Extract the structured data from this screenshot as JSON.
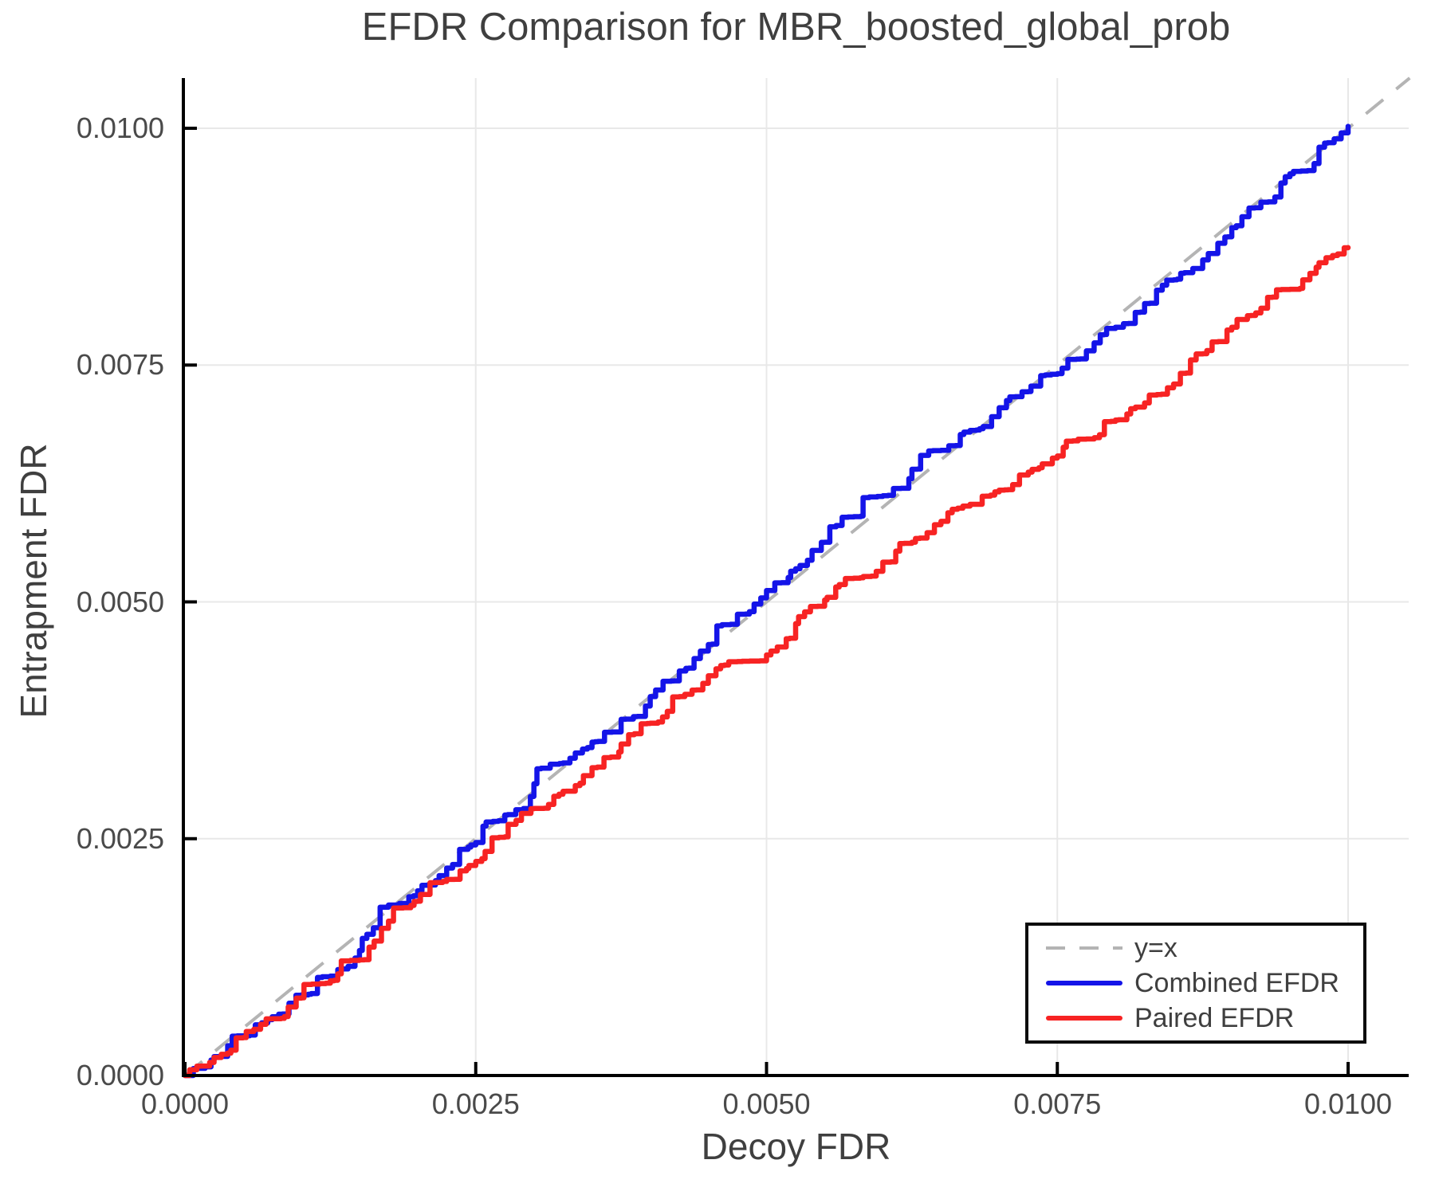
{
  "title": "EFDR Comparison for MBR_boosted_global_prob",
  "axes": {
    "xlabel": "Decoy FDR",
    "ylabel": "Entrapment FDR",
    "x_tick_labels": [
      "0.0000",
      "0.0025",
      "0.0050",
      "0.0075",
      "0.0100"
    ],
    "y_tick_labels": [
      "0.0000",
      "0.0025",
      "0.0050",
      "0.0075",
      "0.0100"
    ]
  },
  "legend": {
    "items": [
      {
        "label": "y=x",
        "color": "#b4b4b4",
        "dashed": true
      },
      {
        "label": "Combined EFDR",
        "color": "#1414e8",
        "dashed": false
      },
      {
        "label": "Paired EFDR",
        "color": "#f72323",
        "dashed": false
      }
    ]
  },
  "colors": {
    "combined_line": "#1414e8",
    "paired_line": "#f72323",
    "identity_line": "#b4b4b4",
    "gridline": "#e8e8e8",
    "axis_spine": "#000000",
    "title_text": "#3f3f3f",
    "tick_text": "#4a4a4a"
  },
  "chart_data": {
    "type": "line",
    "title": "EFDR Comparison for MBR_boosted_global_prob",
    "xlabel": "Decoy FDR",
    "ylabel": "Entrapment FDR",
    "xlim": [
      0,
      0.01053
    ],
    "ylim": [
      0,
      0.01053
    ],
    "x_ticks": [
      0,
      0.0025,
      0.005,
      0.0075,
      0.01
    ],
    "y_ticks": [
      0,
      0.0025,
      0.005,
      0.0075,
      0.01
    ],
    "grid": true,
    "legend_position": "bottom-right",
    "series": [
      {
        "name": "y=x",
        "role": "reference",
        "style": "dashed",
        "color": "#b4b4b4",
        "x": [
          0,
          0.01053
        ],
        "y": [
          0,
          0.01053
        ]
      },
      {
        "name": "Combined EFDR",
        "role": "data",
        "style": "solid",
        "color": "#1414e8",
        "x": [
          0,
          0.00025,
          0.0005,
          0.00075,
          0.001,
          0.00125,
          0.0015,
          0.00175,
          0.002,
          0.00225,
          0.0025,
          0.00275,
          0.003,
          0.00325,
          0.0035,
          0.00375,
          0.004,
          0.00425,
          0.0045,
          0.00475,
          0.005,
          0.00525,
          0.0055,
          0.00575,
          0.006,
          0.00625,
          0.0065,
          0.00675,
          0.007,
          0.00725,
          0.0075,
          0.00775,
          0.008,
          0.00825,
          0.0085,
          0.00875,
          0.009,
          0.00925,
          0.0095,
          0.00975,
          0.01
        ],
        "y": [
          0,
          0.0002,
          0.00042,
          0.00062,
          0.00085,
          0.00105,
          0.00132,
          0.0018,
          0.00195,
          0.00219,
          0.00246,
          0.00275,
          0.00308,
          0.0033,
          0.00352,
          0.00376,
          0.004,
          0.00427,
          0.00455,
          0.00487,
          0.00512,
          0.00535,
          0.00563,
          0.0059,
          0.00612,
          0.0064,
          0.0066,
          0.00681,
          0.00705,
          0.00722,
          0.00741,
          0.00765,
          0.0079,
          0.00815,
          0.0084,
          0.00861,
          0.00895,
          0.00922,
          0.00952,
          0.0098,
          0.01002
        ]
      },
      {
        "name": "Paired EFDR",
        "role": "data",
        "style": "solid",
        "color": "#f72323",
        "x": [
          0,
          0.00025,
          0.0005,
          0.00075,
          0.001,
          0.00125,
          0.0015,
          0.00175,
          0.002,
          0.00225,
          0.0025,
          0.00275,
          0.003,
          0.00325,
          0.0035,
          0.00375,
          0.004,
          0.00425,
          0.0045,
          0.00475,
          0.005,
          0.00525,
          0.0055,
          0.00575,
          0.006,
          0.00625,
          0.0065,
          0.00675,
          0.007,
          0.00725,
          0.0075,
          0.00775,
          0.008,
          0.00825,
          0.0085,
          0.00875,
          0.009,
          0.00925,
          0.0095,
          0.00975,
          0.01
        ],
        "y": [
          0,
          0.00019,
          0.0004,
          0.0006,
          0.00082,
          0.001,
          0.00122,
          0.00163,
          0.00184,
          0.00207,
          0.00226,
          0.00252,
          0.00282,
          0.003,
          0.00325,
          0.0035,
          0.00372,
          0.004,
          0.00422,
          0.00437,
          0.00444,
          0.00477,
          0.00502,
          0.00525,
          0.00542,
          0.00563,
          0.00585,
          0.00603,
          0.00618,
          0.00637,
          0.00654,
          0.00672,
          0.00692,
          0.0071,
          0.0073,
          0.00762,
          0.0079,
          0.0081,
          0.0083,
          0.00858,
          0.00874
        ]
      }
    ]
  }
}
